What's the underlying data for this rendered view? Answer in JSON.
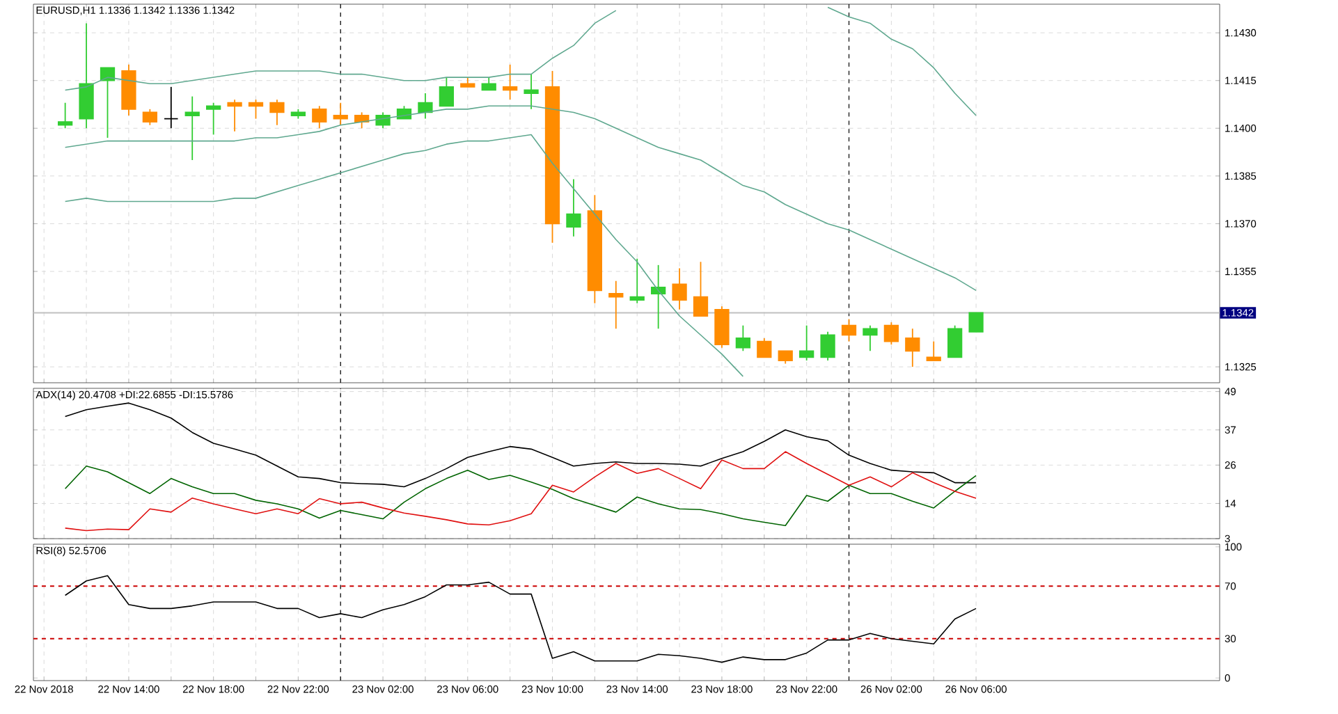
{
  "chart_data": [
    {
      "type": "candlestick",
      "title": "EURUSD,H1  1.1336 1.1342 1.1336 1.1342",
      "categories": [
        null,
        null,
        null,
        null,
        null,
        null,
        null,
        null,
        null,
        null,
        null,
        null,
        null,
        null,
        null,
        null,
        null,
        null,
        null,
        null,
        null,
        null,
        null,
        null,
        null,
        null,
        null,
        null,
        null,
        null,
        null,
        null,
        null,
        null,
        null,
        null,
        null,
        null,
        null,
        null,
        null,
        null,
        null,
        null,
        null
      ],
      "ohlc": [
        null,
        [
          1.1401,
          1.1408,
          1.14,
          1.1402
        ],
        [
          1.1403,
          1.1433,
          1.14,
          1.1414
        ],
        [
          1.1415,
          1.1419,
          1.1397,
          1.1419
        ],
        [
          1.1418,
          1.142,
          1.1404,
          1.1406
        ],
        [
          1.1405,
          1.1406,
          1.1401,
          1.1402
        ],
        [
          1.1403,
          1.1413,
          1.14,
          1.1403
        ],
        [
          1.1404,
          1.141,
          1.139,
          1.1405
        ],
        [
          1.1406,
          1.1408,
          1.1398,
          1.1407
        ],
        [
          1.1408,
          1.1409,
          1.1399,
          1.1407
        ],
        [
          1.1408,
          1.1409,
          1.1403,
          1.1407
        ],
        [
          1.1408,
          1.1409,
          1.1401,
          1.1405
        ],
        [
          1.1404,
          1.1406,
          1.1403,
          1.1405
        ],
        [
          1.1406,
          1.1407,
          1.14,
          1.1402
        ],
        [
          1.1404,
          1.1408,
          1.1401,
          1.1403
        ],
        [
          1.1404,
          1.1405,
          1.14,
          1.1402
        ],
        [
          1.1401,
          1.1405,
          1.14,
          1.1404
        ],
        [
          1.1403,
          1.1407,
          1.1403,
          1.1406
        ],
        [
          1.1405,
          1.1411,
          1.1403,
          1.1408
        ],
        [
          1.1407,
          1.1416,
          1.1407,
          1.1413
        ],
        [
          1.1414,
          1.1416,
          1.1413,
          1.1413
        ],
        [
          1.1412,
          1.1416,
          1.1412,
          1.1414
        ],
        [
          1.1413,
          1.142,
          1.1409,
          1.1412
        ],
        [
          1.1411,
          1.1417,
          1.1406,
          1.1412
        ],
        [
          1.1413,
          1.1418,
          1.1364,
          1.137
        ],
        [
          1.1369,
          1.1384,
          1.1366,
          1.1373
        ],
        [
          1.1374,
          1.1379,
          1.1345,
          1.1349
        ],
        [
          1.1348,
          1.1352,
          1.1337,
          1.1347
        ],
        [
          1.1346,
          1.1359,
          1.1345,
          1.1347
        ],
        [
          1.1348,
          1.1357,
          1.1337,
          1.135
        ],
        [
          1.1351,
          1.1356,
          1.1343,
          1.1346
        ],
        [
          1.1347,
          1.1358,
          1.1341,
          1.1341
        ],
        [
          1.1343,
          1.1344,
          1.1331,
          1.1332
        ],
        [
          1.1331,
          1.1338,
          1.133,
          1.1334
        ],
        [
          1.1333,
          1.1334,
          1.1328,
          1.1328
        ],
        [
          1.133,
          1.133,
          1.1326,
          1.1327
        ],
        [
          1.1328,
          1.1338,
          1.1327,
          1.133
        ],
        [
          1.1328,
          1.1336,
          1.1327,
          1.1335
        ],
        [
          1.1338,
          1.134,
          1.1333,
          1.1335
        ],
        [
          1.1335,
          1.1338,
          1.133,
          1.1337
        ],
        [
          1.1338,
          1.1339,
          1.1332,
          1.1333
        ],
        [
          1.1334,
          1.1337,
          1.1325,
          1.133
        ],
        [
          1.1328,
          1.1333,
          1.1327,
          1.1327
        ],
        [
          1.1328,
          1.1338,
          1.1328,
          1.1337
        ],
        [
          1.1336,
          1.1342,
          1.1336,
          1.1342
        ]
      ],
      "colors": [
        null,
        "#32cd32",
        "#32cd32",
        "#32cd32",
        "#ff8c00",
        "#ff8c00",
        "#000000",
        "#32cd32",
        "#32cd32",
        "#ff8c00",
        "#ff8c00",
        "#ff8c00",
        "#32cd32",
        "#ff8c00",
        "#ff8c00",
        "#ff8c00",
        "#32cd32",
        "#32cd32",
        "#32cd32",
        "#32cd32",
        "#ff8c00",
        "#32cd32",
        "#ff8c00",
        "#32cd32",
        "#ff8c00",
        "#32cd32",
        "#ff8c00",
        "#ff8c00",
        "#32cd32",
        "#32cd32",
        "#ff8c00",
        "#ff8c00",
        "#ff8c00",
        "#32cd32",
        "#ff8c00",
        "#ff8c00",
        "#32cd32",
        "#32cd32",
        "#ff8c00",
        "#32cd32",
        "#ff8c00",
        "#ff8c00",
        "#ff8c00",
        "#32cd32",
        "#32cd32"
      ],
      "series": [
        {
          "type": "line",
          "color": "#5fa88f",
          "values": [
            null,
            1.1412,
            1.1413,
            1.1416,
            1.1415,
            1.1414,
            1.1414,
            1.1415,
            1.1416,
            1.1417,
            1.1418,
            1.1418,
            1.1418,
            1.1418,
            1.1417,
            1.1417,
            1.1416,
            1.1415,
            1.1415,
            1.1416,
            1.1416,
            1.1416,
            1.1417,
            1.1417,
            1.1422,
            1.1426,
            1.1433,
            1.1437,
            null,
            null,
            null,
            null,
            null,
            null,
            null,
            null,
            null,
            1.1438,
            1.1435,
            1.1433,
            1.1428,
            1.1425,
            1.1419,
            1.1411,
            1.1404
          ]
        },
        {
          "type": "line",
          "color": "#5fa88f",
          "values": [
            null,
            1.1394,
            1.1395,
            1.1396,
            1.1396,
            1.1396,
            1.1396,
            1.1396,
            1.1396,
            1.1396,
            1.1397,
            1.1397,
            1.1398,
            1.1399,
            1.1401,
            1.1402,
            1.1403,
            1.1404,
            1.1405,
            1.1406,
            1.1406,
            1.1407,
            1.1407,
            1.1407,
            1.1406,
            1.1405,
            1.1403,
            1.14,
            1.1397,
            1.1394,
            1.1392,
            1.139,
            1.1386,
            1.1382,
            1.138,
            1.1376,
            1.1373,
            1.137,
            1.1368,
            1.1365,
            1.1362,
            1.1359,
            1.1356,
            1.1353,
            1.1349
          ]
        },
        {
          "type": "line",
          "color": "#5fa88f",
          "values": [
            null,
            1.1377,
            1.1378,
            1.1377,
            1.1377,
            1.1377,
            1.1377,
            1.1377,
            1.1377,
            1.1378,
            1.1378,
            1.138,
            1.1382,
            1.1384,
            1.1386,
            1.1388,
            1.139,
            1.1392,
            1.1393,
            1.1395,
            1.1396,
            1.1396,
            1.1397,
            1.1398,
            1.1389,
            1.1381,
            1.1373,
            1.1365,
            1.1358,
            1.1349,
            1.1341,
            1.1335,
            1.1329,
            1.1322,
            null,
            null,
            null,
            null,
            null,
            null,
            null,
            null,
            null,
            null,
            null
          ]
        }
      ],
      "ylim": [
        1.132,
        1.1439
      ],
      "yticks": [
        {
          "value": 1.1325,
          "label": "1.1325"
        },
        {
          "value": 1.1355,
          "label": "1.1355"
        },
        {
          "value": 1.137,
          "label": "1.1370"
        },
        {
          "value": 1.1385,
          "label": "1.1385"
        },
        {
          "value": 1.14,
          "label": "1.1400"
        },
        {
          "value": 1.1415,
          "label": "1.1415"
        },
        {
          "value": 1.143,
          "label": "1.1430"
        }
      ],
      "ref_lines": [
        {
          "axis": "y",
          "value": 1.1342,
          "label": "1.1342",
          "color": "#c0c0c0",
          "line_style": "solid"
        }
      ],
      "grid": true,
      "tick_labels": "y"
    },
    {
      "type": "line",
      "title": "ADX(14) 20.4708 +DI:22.6855 -DI:15.5786",
      "categories": [
        null,
        null,
        null,
        null,
        null,
        null,
        null,
        null,
        null,
        null,
        null,
        null,
        null,
        null,
        null,
        null,
        null,
        null,
        null,
        null,
        null,
        null,
        null,
        null,
        null,
        null,
        null,
        null,
        null,
        null,
        null,
        null,
        null,
        null,
        null,
        null,
        null,
        null,
        null,
        null,
        null,
        null,
        null,
        null,
        null
      ],
      "series": [
        {
          "color": "#000000",
          "values": [
            null,
            41.2,
            43.3,
            44.4,
            45.4,
            43.3,
            40.7,
            36.2,
            32.8,
            31.0,
            29.1,
            25.7,
            22.3,
            21.8,
            20.5,
            20.2,
            20.0,
            19.2,
            21.8,
            24.9,
            28.4,
            30.2,
            31.8,
            31.0,
            28.4,
            25.7,
            26.5,
            27.0,
            26.5,
            26.5,
            26.3,
            25.7,
            28.1,
            30.2,
            33.4,
            37.0,
            34.9,
            33.6,
            29.1,
            26.5,
            24.4,
            23.9,
            23.6,
            20.5,
            20.5
          ]
        },
        {
          "color": "#006400",
          "values": [
            null,
            18.6,
            25.7,
            23.9,
            20.5,
            17.1,
            21.8,
            19.2,
            17.1,
            17.1,
            15.0,
            13.9,
            12.3,
            9.4,
            11.8,
            10.5,
            9.2,
            14.4,
            18.6,
            21.8,
            24.4,
            21.5,
            22.8,
            20.7,
            18.4,
            15.5,
            13.4,
            11.3,
            16.0,
            13.9,
            12.3,
            12.1,
            10.8,
            9.2,
            8.1,
            7.1,
            16.5,
            14.7,
            19.7,
            17.1,
            17.1,
            14.7,
            12.6,
            17.8,
            22.7
          ]
        },
        {
          "color": "#e01010",
          "values": [
            null,
            6.3,
            5.5,
            6.0,
            5.8,
            12.3,
            11.3,
            15.7,
            13.9,
            12.3,
            10.8,
            12.3,
            10.8,
            15.5,
            13.9,
            14.4,
            12.6,
            11.0,
            10.0,
            8.9,
            7.6,
            7.3,
            8.6,
            10.8,
            19.7,
            17.6,
            22.3,
            26.5,
            23.4,
            24.9,
            21.8,
            18.6,
            27.6,
            24.9,
            24.9,
            30.2,
            26.5,
            23.1,
            19.7,
            22.3,
            19.2,
            23.6,
            20.5,
            17.8,
            15.6
          ]
        }
      ],
      "ylim": [
        3,
        50
      ],
      "yticks": [
        3,
        14,
        26,
        37,
        49
      ],
      "grid": true,
      "tick_labels": "y"
    },
    {
      "type": "line",
      "title": "RSI(8) 52.5706",
      "categories": [
        "22 Nov 2018",
        null,
        null,
        null,
        "22 Nov 14:00",
        null,
        null,
        null,
        "22 Nov 18:00",
        null,
        null,
        null,
        "22 Nov 22:00",
        null,
        null,
        null,
        "23 Nov 02:00",
        null,
        null,
        null,
        "23 Nov 06:00",
        null,
        null,
        null,
        "23 Nov 10:00",
        null,
        null,
        null,
        "23 Nov 14:00",
        null,
        null,
        null,
        "23 Nov 18:00",
        null,
        null,
        null,
        "23 Nov 22:00",
        null,
        null,
        null,
        "26 Nov 02:00",
        null,
        null,
        null,
        "26 Nov 06:00"
      ],
      "series": [
        {
          "color": "#000000",
          "values": [
            null,
            63,
            74,
            78,
            56,
            53,
            53,
            55,
            58,
            58,
            58,
            53,
            53,
            46,
            49,
            46,
            52,
            56,
            62,
            71,
            71,
            73,
            64,
            64,
            15,
            20,
            13,
            13,
            13,
            18,
            17,
            15,
            12,
            16,
            14,
            14,
            19,
            29,
            29,
            34,
            30,
            28,
            26,
            45,
            53
          ]
        }
      ],
      "ylim": [
        -2,
        102
      ],
      "yticks": [
        0,
        30,
        70,
        100
      ],
      "ref_lines": [
        {
          "axis": "y",
          "value": 70,
          "color": "#cc0000",
          "line_style": "dashed"
        },
        {
          "axis": "y",
          "value": 30,
          "color": "#cc0000",
          "line_style": "dashed"
        }
      ],
      "grid": "x"
    }
  ]
}
